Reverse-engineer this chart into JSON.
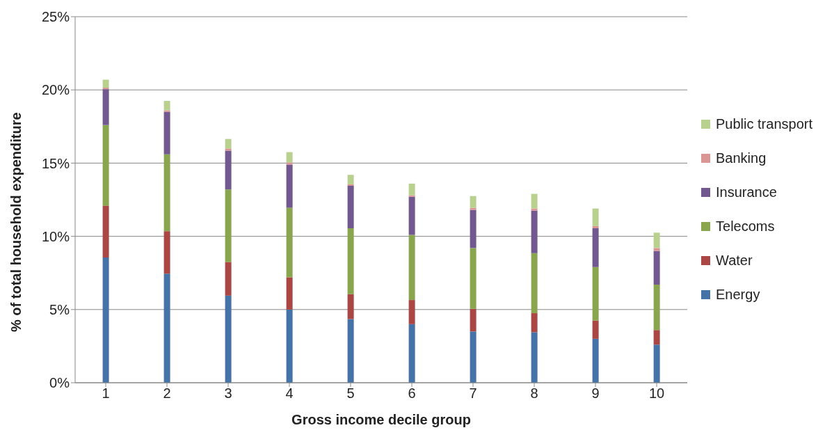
{
  "chart_data": {
    "type": "bar",
    "stacked": true,
    "xlabel": "Gross income decile group",
    "ylabel": "% of total household expenditure",
    "categories": [
      "1",
      "2",
      "3",
      "4",
      "5",
      "6",
      "7",
      "8",
      "9",
      "10"
    ],
    "series": [
      {
        "name": "Energy",
        "color": "#4572a7",
        "values": [
          8.55,
          7.45,
          5.95,
          5.0,
          4.35,
          4.0,
          3.5,
          3.45,
          3.0,
          2.6
        ]
      },
      {
        "name": "Water",
        "color": "#aa4643",
        "values": [
          3.55,
          2.9,
          2.3,
          2.2,
          1.7,
          1.65,
          1.55,
          1.3,
          1.25,
          1.0
        ]
      },
      {
        "name": "Telecoms",
        "color": "#89a54e",
        "values": [
          5.5,
          5.25,
          4.95,
          4.75,
          4.5,
          4.45,
          4.15,
          4.1,
          3.65,
          3.1
        ]
      },
      {
        "name": "Insurance",
        "color": "#71588f",
        "values": [
          2.45,
          2.9,
          2.65,
          2.95,
          2.9,
          2.6,
          2.6,
          2.9,
          2.65,
          2.3
        ]
      },
      {
        "name": "Banking",
        "color": "#d99694",
        "values": [
          0.1,
          0.1,
          0.15,
          0.15,
          0.1,
          0.1,
          0.15,
          0.15,
          0.15,
          0.2
        ]
      },
      {
        "name": "Public transport",
        "color": "#b9d18f",
        "values": [
          0.55,
          0.65,
          0.65,
          0.7,
          0.65,
          0.8,
          0.8,
          1.0,
          1.2,
          1.05
        ]
      }
    ],
    "ylim": [
      0,
      25
    ],
    "yticks": [
      {
        "value": 0,
        "label": "0%"
      },
      {
        "value": 5,
        "label": "5%"
      },
      {
        "value": 10,
        "label": "10%"
      },
      {
        "value": 15,
        "label": "15%"
      },
      {
        "value": 20,
        "label": "20%"
      },
      {
        "value": 25,
        "label": "25%"
      }
    ],
    "grid": "y",
    "legend": "right"
  }
}
